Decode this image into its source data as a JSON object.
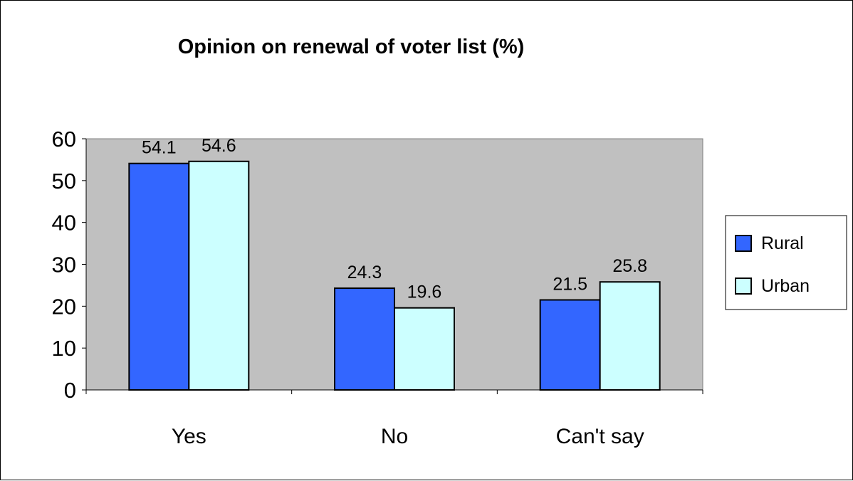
{
  "chart_data": {
    "type": "bar",
    "title": "Opinion on renewal of voter list (%)",
    "xlabel": "",
    "ylabel": "",
    "categories": [
      "Yes",
      "No",
      "Can't say"
    ],
    "series": [
      {
        "name": "Rural",
        "color": "#3366FF",
        "values": [
          54.1,
          24.3,
          21.5
        ]
      },
      {
        "name": "Urban",
        "color": "#CCFFFF",
        "values": [
          54.6,
          19.6,
          25.8
        ]
      }
    ],
    "ylim": [
      0,
      60
    ],
    "yticks": [
      0,
      10,
      20,
      30,
      40,
      50,
      60
    ],
    "plot_background": "#C0C0C0",
    "grid": false,
    "legend": "right"
  }
}
